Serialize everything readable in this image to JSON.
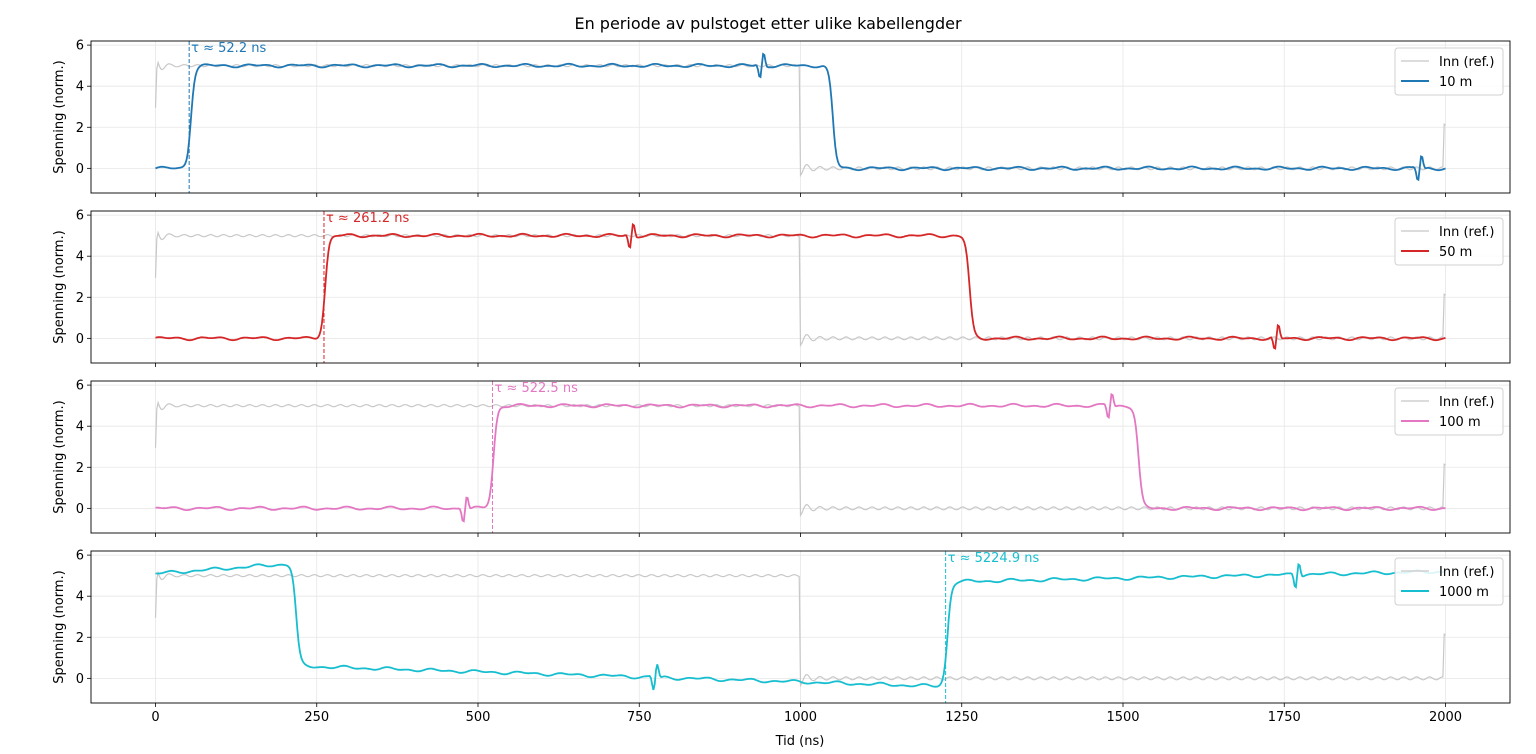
{
  "chart_data": {
    "type": "line",
    "title": "En periode av pulstoget etter ulike kabellengder",
    "xlabel": "Tid (ns)",
    "ylabel": "Spenning (norm.)",
    "xlim": [
      -100,
      2100
    ],
    "ylim": [
      -1.2,
      6.2
    ],
    "xticks": [
      0,
      250,
      500,
      750,
      1000,
      1250,
      1500,
      1750,
      2000
    ],
    "yticks": [
      0,
      2,
      4,
      6
    ],
    "grid": true,
    "legend_position": "top-right",
    "reference": {
      "name": "Inn (ref.)",
      "color": "#c8c8c8",
      "high": 5,
      "low": 0,
      "rise_ns": 0,
      "fall_ns": 1000,
      "period_ns": 2000
    },
    "panels": [
      {
        "name": "10 m",
        "color": "#1f77b4",
        "delay_label": "τ ≈ 52.2 ns",
        "delay_ns": 52.2,
        "high": 5.0,
        "low": 0.0,
        "step_up_ns": 55,
        "step_down_ns": 1050,
        "high_end": 5.0,
        "low_end": 0.0,
        "reflections_ns": [
          940,
          1960
        ]
      },
      {
        "name": "50 m",
        "color": "#d62728",
        "delay_label": "τ ≈ 261.2 ns",
        "delay_ns": 261.2,
        "high": 5.0,
        "low": 0.0,
        "step_up_ns": 263,
        "step_down_ns": 1262,
        "high_end": 5.0,
        "low_end": 0.0,
        "reflections_ns": [
          738,
          1738
        ]
      },
      {
        "name": "100 m",
        "color": "#e377c2",
        "delay_label": "τ ≈ 522.5 ns",
        "delay_ns": 522.5,
        "high": 5.0,
        "low": 0.0,
        "step_up_ns": 524,
        "step_down_ns": 1524,
        "high_end": 5.0,
        "low_end": 0.0,
        "reflections_ns": [
          480,
          1480
        ]
      },
      {
        "name": "1000 m",
        "color": "#17becf",
        "delay_label": "τ ≈ 5224.9 ns",
        "delay_ns": 5224.9,
        "marker_ns": 1225,
        "wrapped_start_high": true,
        "high_start": 5.1,
        "high_start_end": 5.6,
        "step_down_ns": 218,
        "low_start": 0.6,
        "low_end": -0.4,
        "step_up_ns": 1228,
        "high": 4.7,
        "high_end": 5.2,
        "reflections_ns": [
          775,
          1770
        ]
      }
    ]
  }
}
